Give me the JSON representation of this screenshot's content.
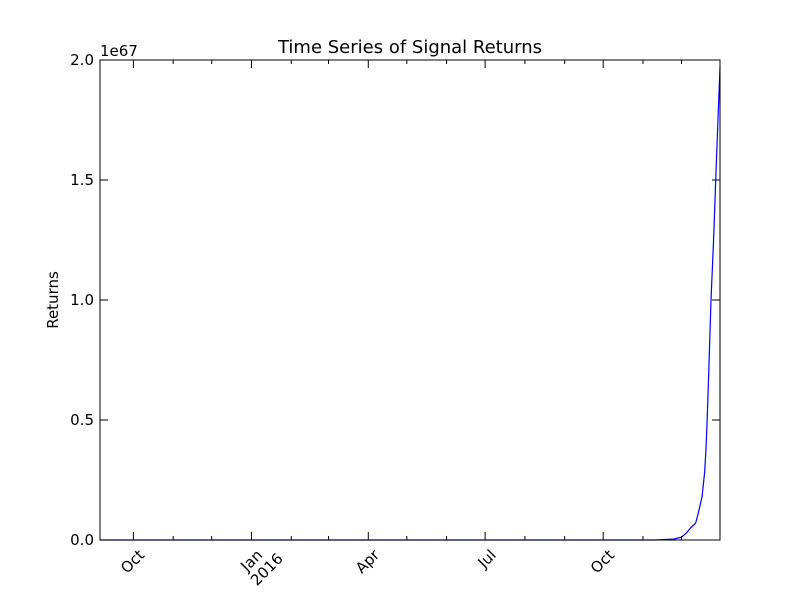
{
  "chart_data": {
    "type": "line",
    "title": "Time Series of Signal Returns",
    "xlabel": "",
    "ylabel": "Returns",
    "y_offset_label": "1e67",
    "ylim": [
      0,
      2.0
    ],
    "y_scale_exponent": 67,
    "xlim": [
      "2015-09-05",
      "2016-12-31"
    ],
    "grid": false,
    "legend": "none",
    "line_color": "#0000ff",
    "y_ticks": [
      {
        "value": 0.0,
        "label": "0.0"
      },
      {
        "value": 0.5,
        "label": "0.5"
      },
      {
        "value": 1.0,
        "label": "1.0"
      },
      {
        "value": 1.5,
        "label": "1.5"
      },
      {
        "value": 2.0,
        "label": "2.0"
      }
    ],
    "x_ticks": [
      {
        "date": "2015-10-01",
        "label": "Oct"
      },
      {
        "date": "2016-01-01",
        "label": "Jan",
        "sublabel": "2016"
      },
      {
        "date": "2016-04-01",
        "label": "Apr"
      },
      {
        "date": "2016-07-01",
        "label": "Jul"
      },
      {
        "date": "2016-10-01",
        "label": "Oct"
      }
    ],
    "x_minor_ticks": [
      "2015-11-01",
      "2015-12-01",
      "2016-02-01",
      "2016-03-01",
      "2016-05-01",
      "2016-06-01",
      "2016-08-01",
      "2016-09-01",
      "2016-11-01",
      "2016-12-01"
    ],
    "series": [
      {
        "x": [
          "2015-09-05",
          "2016-11-10",
          "2016-11-25",
          "2016-12-01",
          "2016-12-05",
          "2016-12-08",
          "2016-12-12",
          "2016-12-14",
          "2016-12-17",
          "2016-12-19",
          "2016-12-20",
          "2016-12-21",
          "2016-12-22",
          "2016-12-23",
          "2016-12-24",
          "2016-12-26",
          "2016-12-28",
          "2016-12-31"
        ],
        "y": [
          0.0,
          0.0,
          0.004,
          0.012,
          0.03,
          0.05,
          0.07,
          0.11,
          0.18,
          0.28,
          0.37,
          0.5,
          0.66,
          0.83,
          1.0,
          1.25,
          1.55,
          1.97
        ]
      }
    ]
  }
}
